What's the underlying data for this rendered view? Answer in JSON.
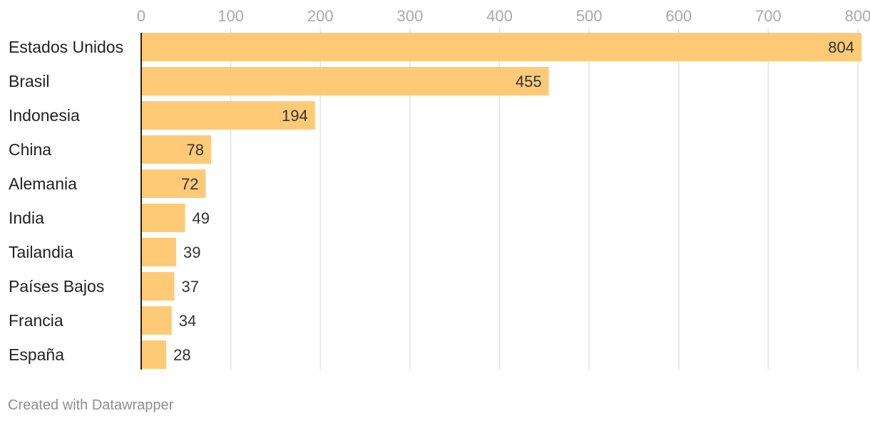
{
  "chart_data": {
    "type": "bar",
    "orientation": "horizontal",
    "categories": [
      "Estados Unidos",
      "Brasil",
      "Indonesia",
      "China",
      "Alemania",
      "India",
      "Tailandia",
      "Países Bajos",
      "Francia",
      "España"
    ],
    "values": [
      804,
      455,
      194,
      78,
      72,
      49,
      39,
      37,
      34,
      28
    ],
    "value_labels": [
      "804",
      "455",
      "194",
      "78",
      "72",
      "49",
      "39",
      "37",
      "34",
      "28"
    ],
    "title": "",
    "xlabel": "",
    "ylabel": "",
    "xlim": [
      0,
      800
    ],
    "ticks": [
      0,
      100,
      200,
      300,
      400,
      500,
      600,
      700,
      800
    ],
    "tick_labels": [
      "0",
      "100",
      "200",
      "300",
      "400",
      "500",
      "600",
      "700",
      "800"
    ],
    "grid": true,
    "bar_color": "#ffca76",
    "legend": "none"
  },
  "footer": {
    "credit": "Created with Datawrapper"
  }
}
